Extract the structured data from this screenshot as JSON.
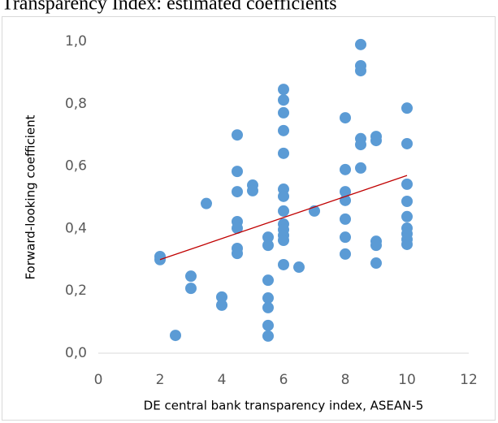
{
  "chart_data": {
    "type": "scatter",
    "title": "Transparency Index: estimated coefficients",
    "x_label": "DE central bank transparency index, ASEAN-5",
    "y_label": "Forward-looking coefficient",
    "color": "#5b9bd5",
    "x": [
      2,
      2,
      2.5,
      3,
      3,
      3.5,
      4,
      4,
      4.5,
      4.5,
      4.5,
      4.5,
      4.5,
      4.5,
      4.5,
      5,
      5,
      5.5,
      5.5,
      5.5,
      5.5,
      5.5,
      5.5,
      5.5,
      6,
      6,
      6,
      6,
      6,
      6,
      6,
      6,
      6,
      6,
      6,
      6,
      6,
      6.5,
      7,
      8,
      8,
      8,
      8,
      8,
      8,
      8,
      8.5,
      8.5,
      8.5,
      8.5,
      8.5,
      8.5,
      9,
      9,
      9,
      9,
      9,
      10,
      10,
      10,
      10,
      10,
      10,
      10,
      10,
      10
    ],
    "values": [
      0.31,
      0.3,
      0.057,
      0.247,
      0.208,
      0.48,
      0.18,
      0.154,
      0.7,
      0.583,
      0.518,
      0.422,
      0.401,
      0.336,
      0.32,
      0.539,
      0.521,
      0.372,
      0.346,
      0.234,
      0.177,
      0.146,
      0.089,
      0.055,
      0.846,
      0.812,
      0.771,
      0.714,
      0.641,
      0.526,
      0.503,
      0.456,
      0.414,
      0.396,
      0.378,
      0.362,
      0.284,
      0.276,
      0.456,
      0.755,
      0.589,
      0.518,
      0.49,
      0.43,
      0.372,
      0.318,
      0.99,
      0.922,
      0.906,
      0.688,
      0.669,
      0.594,
      0.695,
      0.682,
      0.359,
      0.346,
      0.289,
      0.786,
      0.672,
      0.542,
      0.487,
      0.438,
      0.401,
      0.383,
      0.365,
      0.349
    ],
    "trendline": {
      "color": "#c00000",
      "x": [
        2,
        10
      ],
      "y": [
        0.3,
        0.57
      ]
    },
    "xlim": [
      0,
      12
    ],
    "xticks": [
      0,
      2,
      4,
      6,
      8,
      10,
      12
    ],
    "ylim": [
      0,
      1
    ],
    "yticks": [
      {
        "value": 0,
        "label": "0,0"
      },
      {
        "value": 0.2,
        "label": "0,2"
      },
      {
        "value": 0.4,
        "label": "0,4"
      },
      {
        "value": 0.6,
        "label": "0,6"
      },
      {
        "value": 0.8,
        "label": "0,8"
      },
      {
        "value": 1,
        "label": "1,0"
      }
    ],
    "grid": false
  }
}
